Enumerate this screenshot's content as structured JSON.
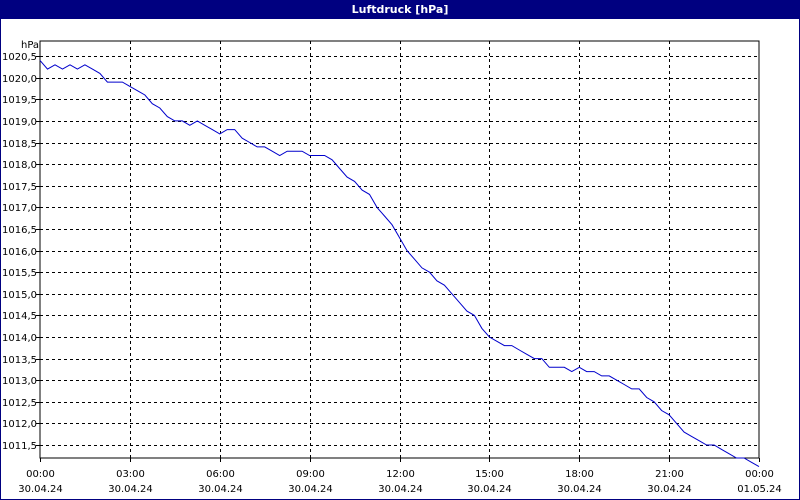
{
  "chart_data": {
    "type": "line",
    "title": "Luftdruck [hPa]",
    "ylabel": "hPa",
    "xlabel": "",
    "ylim": [
      1011.2,
      1020.85
    ],
    "xlim": [
      0,
      24
    ],
    "grid": true,
    "y_ticks": [
      "1011,5",
      "1012,0",
      "1012,5",
      "1013,0",
      "1013,5",
      "1014,0",
      "1014,5",
      "1015,0",
      "1015,5",
      "1016,0",
      "1016,5",
      "1017,0",
      "1017,5",
      "1018,0",
      "1018,5",
      "1019,0",
      "1019,5",
      "1020,0",
      "1020,5"
    ],
    "y_tick_values": [
      1011.5,
      1012.0,
      1012.5,
      1013.0,
      1013.5,
      1014.0,
      1014.5,
      1015.0,
      1015.5,
      1016.0,
      1016.5,
      1017.0,
      1017.5,
      1018.0,
      1018.5,
      1019.0,
      1019.5,
      1020.0,
      1020.5
    ],
    "x_ticks": [
      {
        "time": "00:00",
        "date": "30.04.24",
        "hour": 0
      },
      {
        "time": "03:00",
        "date": "30.04.24",
        "hour": 3
      },
      {
        "time": "06:00",
        "date": "30.04.24",
        "hour": 6
      },
      {
        "time": "09:00",
        "date": "30.04.24",
        "hour": 9
      },
      {
        "time": "12:00",
        "date": "30.04.24",
        "hour": 12
      },
      {
        "time": "15:00",
        "date": "30.04.24",
        "hour": 15
      },
      {
        "time": "18:00",
        "date": "30.04.24",
        "hour": 18
      },
      {
        "time": "21:00",
        "date": "30.04.24",
        "hour": 21
      },
      {
        "time": "00:00",
        "date": "01.05.24",
        "hour": 24
      }
    ],
    "series": [
      {
        "color": "#0000cc",
        "x": [
          0,
          0.25,
          0.5,
          0.75,
          1,
          1.25,
          1.5,
          1.75,
          2,
          2.25,
          2.5,
          2.75,
          3,
          3.25,
          3.5,
          3.75,
          4,
          4.25,
          4.5,
          4.75,
          5,
          5.25,
          5.5,
          5.75,
          6,
          6.25,
          6.5,
          6.75,
          7,
          7.25,
          7.5,
          7.75,
          8,
          8.25,
          8.5,
          8.75,
          9,
          9.25,
          9.5,
          9.75,
          10,
          10.25,
          10.5,
          10.75,
          11,
          11.25,
          11.5,
          11.75,
          12,
          12.25,
          12.5,
          12.75,
          13,
          13.25,
          13.5,
          13.75,
          14,
          14.25,
          14.5,
          14.75,
          15,
          15.25,
          15.5,
          15.75,
          16,
          16.25,
          16.5,
          16.75,
          17,
          17.25,
          17.5,
          17.75,
          18,
          18.25,
          18.5,
          18.75,
          19,
          19.25,
          19.5,
          19.75,
          20,
          20.25,
          20.5,
          20.75,
          21,
          21.25,
          21.5,
          21.75,
          22,
          22.25,
          22.5,
          22.75,
          23,
          23.25,
          23.5,
          23.75,
          24
        ],
        "values": [
          1020.4,
          1020.2,
          1020.3,
          1020.2,
          1020.3,
          1020.2,
          1020.3,
          1020.2,
          1020.1,
          1019.9,
          1019.9,
          1019.9,
          1019.8,
          1019.7,
          1019.6,
          1019.4,
          1019.3,
          1019.1,
          1019.0,
          1019.0,
          1018.9,
          1019.0,
          1018.9,
          1018.8,
          1018.7,
          1018.8,
          1018.8,
          1018.6,
          1018.5,
          1018.4,
          1018.4,
          1018.3,
          1018.2,
          1018.3,
          1018.3,
          1018.3,
          1018.2,
          1018.2,
          1018.2,
          1018.1,
          1017.9,
          1017.7,
          1017.6,
          1017.4,
          1017.3,
          1017.0,
          1016.8,
          1016.6,
          1016.3,
          1016.0,
          1015.8,
          1015.6,
          1015.5,
          1015.3,
          1015.2,
          1015.0,
          1014.8,
          1014.6,
          1014.5,
          1014.2,
          1014.0,
          1013.9,
          1013.8,
          1013.8,
          1013.7,
          1013.6,
          1013.5,
          1013.5,
          1013.3,
          1013.3,
          1013.3,
          1013.2,
          1013.3,
          1013.2,
          1013.2,
          1013.1,
          1013.1,
          1013.0,
          1012.9,
          1012.8,
          1012.8,
          1012.6,
          1012.5,
          1012.3,
          1012.2,
          1012.0,
          1011.8,
          1011.7,
          1011.6,
          1011.5,
          1011.5,
          1011.4,
          1011.3,
          1011.2,
          1011.2,
          1011.1,
          1011.0
        ]
      }
    ]
  }
}
